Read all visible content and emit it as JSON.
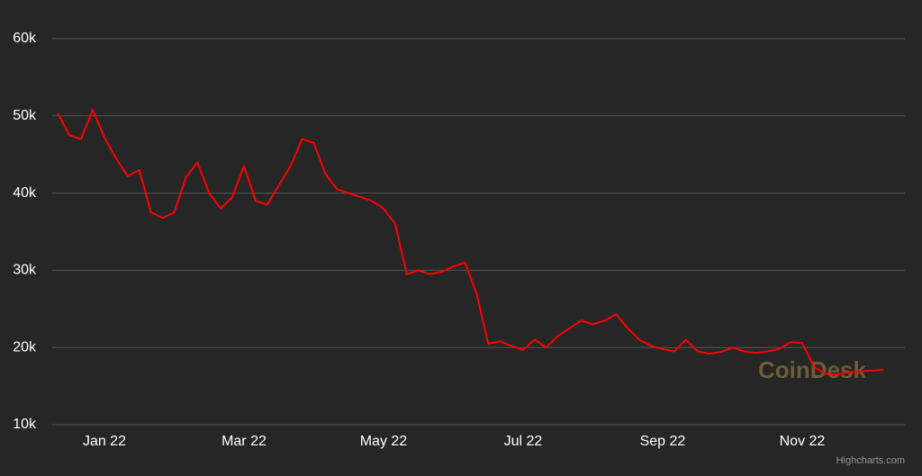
{
  "chart_data": {
    "type": "line",
    "categories": [
      null,
      null,
      null,
      null,
      "Jan 22",
      null,
      null,
      null,
      null,
      null,
      null,
      null,
      null,
      null,
      null,
      null,
      "Mar 22",
      null,
      null,
      null,
      null,
      null,
      null,
      null,
      null,
      null,
      null,
      null,
      "May 22",
      null,
      null,
      null,
      null,
      null,
      null,
      null,
      null,
      null,
      null,
      null,
      "Jul 22",
      null,
      null,
      null,
      null,
      null,
      null,
      null,
      null,
      null,
      null,
      null,
      "Sep 22",
      null,
      null,
      null,
      null,
      null,
      null,
      null,
      null,
      null,
      null,
      null,
      "Nov 22",
      null,
      null,
      null,
      null,
      null,
      null,
      null
    ],
    "series": [
      {
        "color": "#ff0000",
        "values": [
          50300,
          47500,
          47000,
          50800,
          47200,
          44500,
          42200,
          43000,
          37500,
          36800,
          37500,
          42000,
          44000,
          40000,
          38000,
          39500,
          43500,
          39000,
          38500,
          41000,
          43500,
          47000,
          46500,
          42500,
          40500,
          40000,
          39500,
          39000,
          38000,
          36000,
          29500,
          30000,
          29500,
          29800,
          30500,
          31000,
          27000,
          20500,
          20800,
          20200,
          19700,
          21000,
          20000,
          21500,
          22500,
          23500,
          23000,
          23500,
          24300,
          22500,
          21000,
          20200,
          19800,
          19500,
          21000,
          19500,
          19200,
          19400,
          20000,
          19500,
          19300,
          19500,
          19800,
          20700,
          20600,
          17500,
          16600,
          16500,
          16800,
          16900,
          17000,
          17100
        ]
      }
    ],
    "ylim": [
      10000,
      60000
    ],
    "yticks": [
      {
        "value": 10000,
        "label": "10k"
      },
      {
        "value": 20000,
        "label": "20k"
      },
      {
        "value": 30000,
        "label": "30k"
      },
      {
        "value": 40000,
        "label": "40k"
      },
      {
        "value": 50000,
        "label": "50k"
      },
      {
        "value": 60000,
        "label": "60k"
      }
    ],
    "grid": true,
    "watermark": "CoinDesk",
    "credits": "Highcharts.com"
  }
}
